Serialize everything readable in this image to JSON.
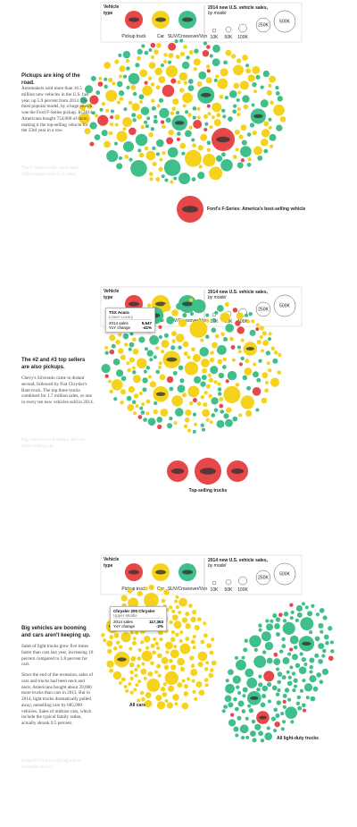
{
  "panels": [
    {
      "legend": {
        "title": "Vehicle type",
        "types": [
          "Pickup truck",
          "Car",
          "SUV/Crossover/Van"
        ],
        "size_title": "2014 new U.S. vehicle sales,",
        "size_subtitle": "by model",
        "sizes": [
          "10K",
          "50K",
          "100K",
          "250K",
          "500K"
        ]
      },
      "heading": "Pickups are king of the road.",
      "paragraphs": [
        "Automakers sold more than 16.5 million new vehicles in the U.S. last year, up 5.9 percent from 2013. The most popular model, by a huge stretch, was the Ford F-Series pickup. In 2014, Americans bought 754,000 of them, making it the top-selling vehicle for the 33rd year in a row."
      ],
      "next_text": "The F-Series trucks alone beat Volkswagen's total U.S. sales.",
      "annotations": [
        "Ford's F-Series: America's best-selling vehicle"
      ]
    },
    {
      "legend": {
        "title": "Vehicle type",
        "types": [
          "Pickup truck",
          "Car",
          "SUV/Crossover/Van"
        ],
        "size_title": "2014 new U.S. vehicle sales,",
        "size_subtitle": "by model",
        "sizes": [
          "10K",
          "50K",
          "100K",
          "250K",
          "500K"
        ]
      },
      "tooltip": {
        "model": "TSX Acura",
        "segment": "Lower Luxury",
        "rows": [
          [
            "2014 sales",
            "5,647"
          ],
          [
            "YoY change",
            "-41%"
          ]
        ]
      },
      "heading": "The #2 and #3 top sellers are also pickups.",
      "paragraphs": [
        "Chevy's Silverado came in distant second, followed by Fiat Chrysler's Ram truck. The top three trucks combined for 1.7 million sales, or one in every ten new vehicles sold in 2014."
      ],
      "next_text": "Big vehicles are booming and cars aren't keeping up.",
      "annotations": [
        "Top-selling trucks"
      ]
    },
    {
      "legend": {
        "title": "Vehicle type",
        "types": [
          "Pickup truck",
          "Car",
          "SUV/Crossover/Van"
        ],
        "size_title": "2014 new U.S. vehicle sales,",
        "size_subtitle": "by model",
        "sizes": [
          "10K",
          "50K",
          "100K",
          "250K",
          "500K"
        ]
      },
      "tooltip": {
        "model": "Chrysler 200 Chrysler",
        "segment": "Upper Middle",
        "rows": [
          [
            "2014 sales",
            "117,363"
          ],
          [
            "YoY change",
            "-2%"
          ]
        ]
      },
      "heading": "Big vehicles are booming and cars aren't keeping up.",
      "paragraphs": [
        "Sales of light trucks grew five times faster than cars last year, increasing 10 percent compared to 1.8 percent for cars.",
        "Since the end of the recession, sales of cars and trucks had been neck and neck: Americans bought about 39,000 more trucks than cars in 2013. But in 2014, light trucks dramatically pulled away, outselling cars by 685,000 vehicles. Sales of midsize cars, which include the typical family sedan, actually shrank 0.5 percent."
      ],
      "next_text": "Large SUVs are enjoying a post-recession revival.",
      "annotations": [
        "All cars",
        "All light-duty trucks"
      ]
    }
  ]
}
